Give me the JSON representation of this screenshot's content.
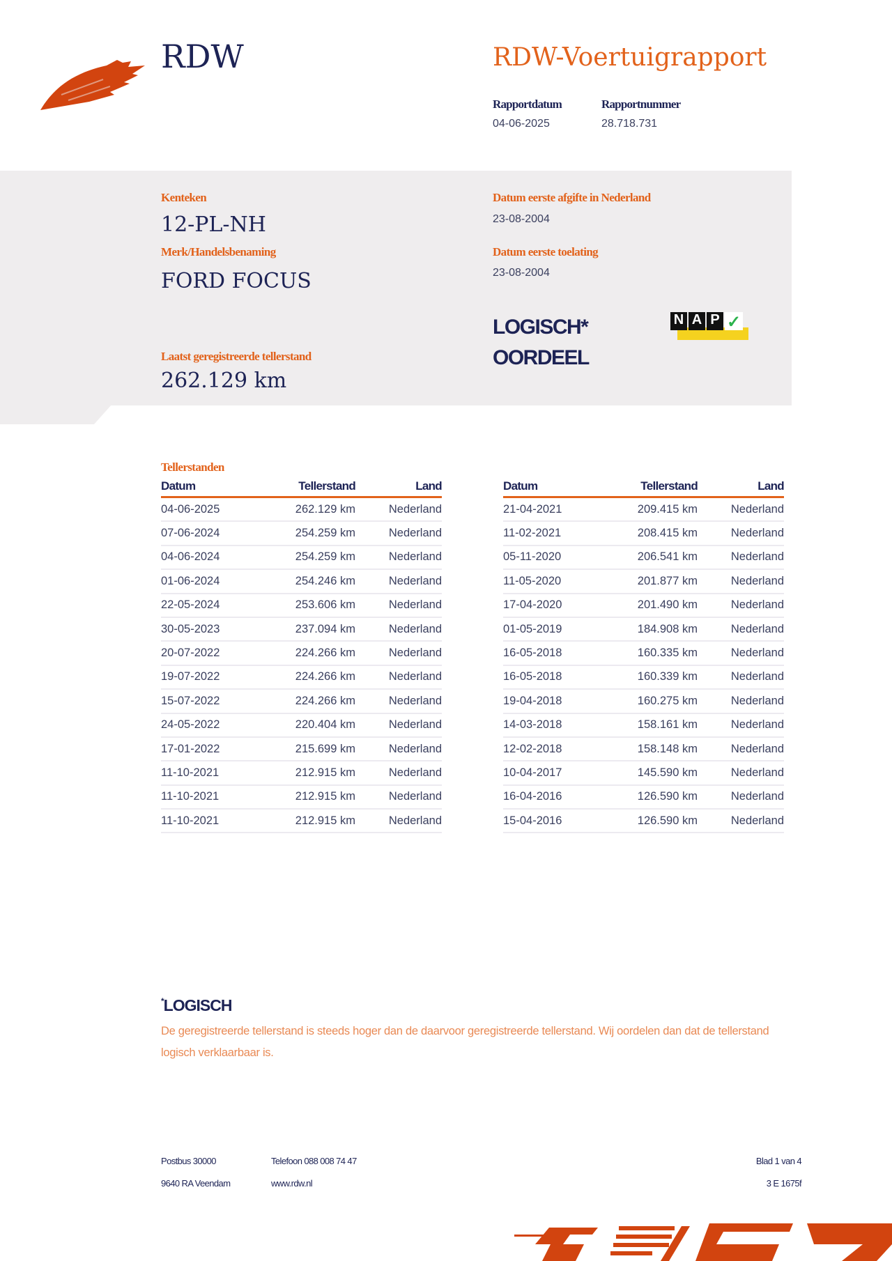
{
  "header": {
    "org": "RDW",
    "title": "RDW-Voertuigrapport",
    "report_date_label": "Rapportdatum",
    "report_date": "04-06-2025",
    "report_number_label": "Rapportnummer",
    "report_number": "28.718.731"
  },
  "vehicle": {
    "plate_label": "Kenteken",
    "plate": "12-PL-NH",
    "make_label": "Merk/Handelsbenaming",
    "make": "FORD FOCUS",
    "first_nl_label": "Datum eerste afgifte in Nederland",
    "first_nl": "23-08-2004",
    "first_admission_label": "Datum eerste toelating",
    "first_admission": "23-08-2004",
    "odometer_label": "Laatst geregistreerde tellerstand",
    "odometer": "262.129 km",
    "verdict": "LOGISCH*",
    "verdict_label": "OORDEEL",
    "nap_logo": "NAP"
  },
  "odometer_readings": {
    "title": "Tellerstanden",
    "columns": [
      "Datum",
      "Tellerstand",
      "Land"
    ],
    "left": [
      [
        "04-06-2025",
        "262.129 km",
        "Nederland"
      ],
      [
        "07-06-2024",
        "254.259 km",
        "Nederland"
      ],
      [
        "04-06-2024",
        "254.259 km",
        "Nederland"
      ],
      [
        "01-06-2024",
        "254.246 km",
        "Nederland"
      ],
      [
        "22-05-2024",
        "253.606 km",
        "Nederland"
      ],
      [
        "30-05-2023",
        "237.094 km",
        "Nederland"
      ],
      [
        "20-07-2022",
        "224.266 km",
        "Nederland"
      ],
      [
        "19-07-2022",
        "224.266 km",
        "Nederland"
      ],
      [
        "15-07-2022",
        "224.266 km",
        "Nederland"
      ],
      [
        "24-05-2022",
        "220.404 km",
        "Nederland"
      ],
      [
        "17-01-2022",
        "215.699 km",
        "Nederland"
      ],
      [
        "11-10-2021",
        "212.915 km",
        "Nederland"
      ],
      [
        "11-10-2021",
        "212.915 km",
        "Nederland"
      ],
      [
        "11-10-2021",
        "212.915 km",
        "Nederland"
      ]
    ],
    "right": [
      [
        "21-04-2021",
        "209.415 km",
        "Nederland"
      ],
      [
        "11-02-2021",
        "208.415 km",
        "Nederland"
      ],
      [
        "05-11-2020",
        "206.541 km",
        "Nederland"
      ],
      [
        "11-05-2020",
        "201.877 km",
        "Nederland"
      ],
      [
        "17-04-2020",
        "201.490 km",
        "Nederland"
      ],
      [
        "01-05-2019",
        "184.908 km",
        "Nederland"
      ],
      [
        "16-05-2018",
        "160.335 km",
        "Nederland"
      ],
      [
        "16-05-2018",
        "160.339 km",
        "Nederland"
      ],
      [
        "19-04-2018",
        "160.275 km",
        "Nederland"
      ],
      [
        "14-03-2018",
        "158.161 km",
        "Nederland"
      ],
      [
        "12-02-2018",
        "158.148 km",
        "Nederland"
      ],
      [
        "10-04-2017",
        "145.590 km",
        "Nederland"
      ],
      [
        "16-04-2016",
        "126.590 km",
        "Nederland"
      ],
      [
        "15-04-2016",
        "126.590 km",
        "Nederland"
      ]
    ]
  },
  "footnote": {
    "title": "LOGISCH",
    "marker": "*",
    "text": "De geregistreerde tellerstand is steeds hoger dan de daarvoor geregistreerde tellerstand. Wij oordelen dan dat de tellerstand logisch verklaarbaar is."
  },
  "footer": {
    "address1": "Postbus 30000",
    "address2": "9640 RA Veendam",
    "phone": "Telefoon 088 008 74 47",
    "web": "www.rdw.nl",
    "page": "Blad 1 van 4",
    "code": "3 E 1675f"
  },
  "colors": {
    "orange": "#e2621b",
    "navy": "#1d2355",
    "band": "#efedee"
  }
}
